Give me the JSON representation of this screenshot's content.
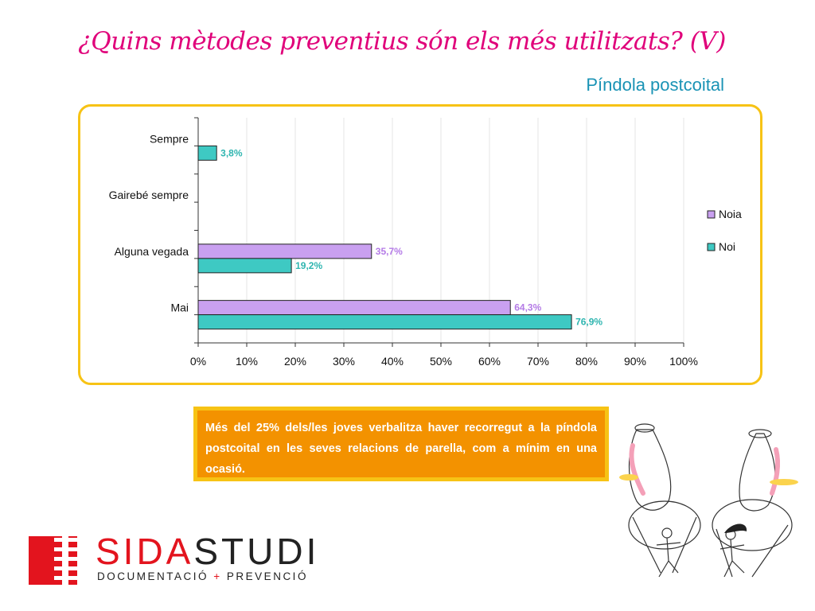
{
  "page": {
    "title": "¿Quins mètodes preventius són els més utilitzats? (V)",
    "subtitle": "Píndola postcoital"
  },
  "note": {
    "text": "Més del 25% dels/les joves verbalitza haver recorregut a la píndola postcoital en les seves relacions de parella, com a mínim en una ocasió."
  },
  "logo": {
    "brand_part1": "SIDA",
    "brand_part2": "STUDI",
    "tagline_part1": "DOCUMENTACIÓ",
    "tagline_plus": "+",
    "tagline_part2": "PREVENCIÓ"
  },
  "colors": {
    "title": "#e0007a",
    "subtitle": "#1a93b5",
    "frame": "#f7c315",
    "note_bg": "#f39200",
    "noia": "#c9a0f0",
    "noia_label": "#b47be6",
    "noi": "#3ec9c3",
    "noi_label": "#2fb5b0",
    "brand_red": "#e3141e"
  },
  "chart_data": {
    "type": "bar",
    "orientation": "horizontal",
    "categories": [
      "Sempre",
      "Gairebé sempre",
      "Alguna vegada",
      "Mai"
    ],
    "series": [
      {
        "name": "Noia",
        "values": [
          null,
          null,
          35.7,
          64.3
        ],
        "labels": [
          "",
          "",
          "35,7%",
          "64,3%"
        ]
      },
      {
        "name": "Noi",
        "values": [
          3.8,
          null,
          19.2,
          76.9
        ],
        "labels": [
          "3,8%",
          "",
          "19,2%",
          "76,9%"
        ]
      }
    ],
    "xlim": [
      0,
      100
    ],
    "xticks": [
      "0%",
      "10%",
      "20%",
      "30%",
      "40%",
      "50%",
      "60%",
      "70%",
      "80%",
      "90%",
      "100%"
    ],
    "grid": true,
    "legend_position": "right"
  }
}
